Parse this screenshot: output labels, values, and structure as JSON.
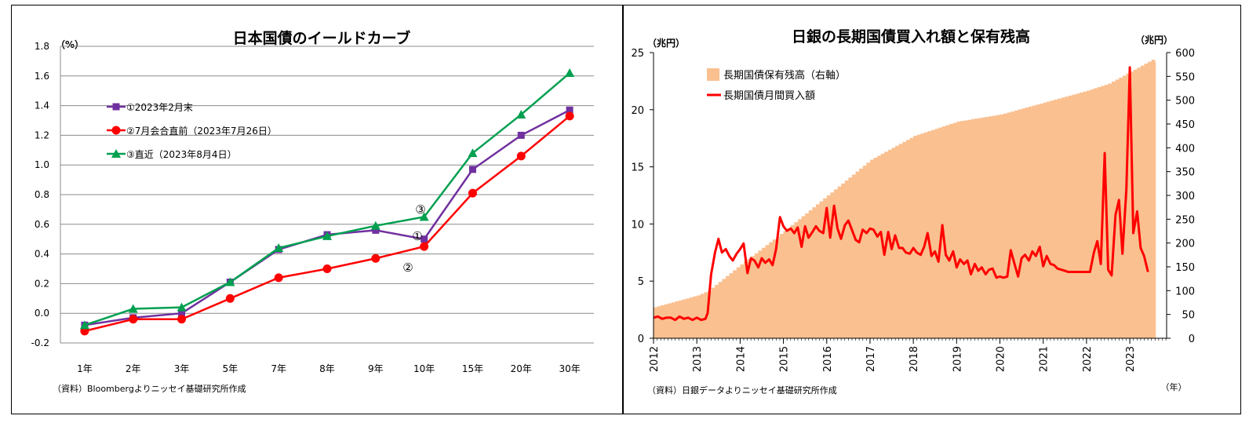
{
  "chart_data": [
    {
      "type": "line",
      "title": "日本国債のイールドカーブ",
      "ylabel": "（%）",
      "ylim": [
        -0.2,
        1.8
      ],
      "yticks": [
        "1.8",
        "1.6",
        "1.4",
        "1.2",
        "1.0",
        "0.8",
        "0.6",
        "0.4",
        "0.2",
        "0.0",
        "-0.2"
      ],
      "categories": [
        "1年",
        "2年",
        "3年",
        "5年",
        "7年",
        "8年",
        "9年",
        "10年",
        "15年",
        "20年",
        "30年"
      ],
      "series": [
        {
          "name": "①2023年2月末",
          "color": "#7030A0",
          "marker": "square",
          "values": [
            -0.08,
            -0.03,
            0.0,
            0.21,
            0.43,
            0.53,
            0.56,
            0.5,
            0.97,
            1.2,
            1.37
          ]
        },
        {
          "name": "②7月会合直前（2023年7月26日）",
          "color": "#FF0000",
          "marker": "circle",
          "values": [
            -0.12,
            -0.04,
            -0.04,
            0.1,
            0.24,
            0.3,
            0.37,
            0.45,
            0.81,
            1.06,
            1.33
          ]
        },
        {
          "name": "③直近（2023年8月4日）",
          "color": "#00A050",
          "marker": "triangle",
          "values": [
            -0.08,
            0.03,
            0.04,
            0.21,
            0.44,
            0.52,
            0.59,
            0.65,
            1.08,
            1.34,
            1.62
          ]
        }
      ],
      "annotations": [
        "③",
        "①",
        "②"
      ],
      "grid": true,
      "legend": "top-left",
      "source": "（資料）Bloombergよりニッセイ基礎研究所作成"
    },
    {
      "type": "bar+line",
      "title": "日銀の長期国債買入れ額と保有残高",
      "y_left_label": "（兆円）",
      "y_right_label": "（兆円）",
      "ylim_left": [
        0,
        25
      ],
      "ylim_right": [
        0,
        600
      ],
      "yticks_left": [
        "25",
        "20",
        "15",
        "10",
        "5",
        "0"
      ],
      "yticks_right": [
        "600",
        "550",
        "500",
        "450",
        "400",
        "350",
        "300",
        "250",
        "200",
        "150",
        "100",
        "50",
        "0"
      ],
      "x_ticks": [
        "2012",
        "2013",
        "2014",
        "2015",
        "2016",
        "2017",
        "2018",
        "2019",
        "2020",
        "2021",
        "2022",
        "2023"
      ],
      "x_unit": "（年）",
      "x_start": 2012.0,
      "x_end": 2023.85,
      "legend": "top-left",
      "source": "（資料）日銀データよりニッセイ基礎研究所作成",
      "holdings": {
        "name": "長期国債保有残高（右軸）",
        "axis": "right",
        "color": "#FAC090",
        "points": [
          [
            2012.0,
            65
          ],
          [
            2013.0,
            90
          ],
          [
            2013.25,
            100
          ],
          [
            2014.0,
            155
          ],
          [
            2015.0,
            225
          ],
          [
            2016.0,
            300
          ],
          [
            2017.0,
            375
          ],
          [
            2018.0,
            425
          ],
          [
            2019.0,
            455
          ],
          [
            2020.0,
            470
          ],
          [
            2021.0,
            495
          ],
          [
            2022.0,
            520
          ],
          [
            2022.5,
            535
          ],
          [
            2023.0,
            560
          ],
          [
            2023.5,
            585
          ],
          [
            2023.6,
            580
          ]
        ]
      },
      "purchases": {
        "name": "長期国債月間買入額",
        "axis": "left",
        "color": "#FF0000",
        "points": [
          [
            2012.0,
            1.8
          ],
          [
            2012.1,
            1.9
          ],
          [
            2012.2,
            1.7
          ],
          [
            2012.3,
            1.8
          ],
          [
            2012.4,
            1.8
          ],
          [
            2012.5,
            1.6
          ],
          [
            2012.6,
            1.9
          ],
          [
            2012.7,
            1.7
          ],
          [
            2012.8,
            1.8
          ],
          [
            2012.9,
            1.6
          ],
          [
            2013.0,
            1.8
          ],
          [
            2013.1,
            1.6
          ],
          [
            2013.2,
            1.7
          ],
          [
            2013.25,
            2.2
          ],
          [
            2013.33,
            5.6
          ],
          [
            2013.42,
            7.5
          ],
          [
            2013.5,
            8.7
          ],
          [
            2013.58,
            7.5
          ],
          [
            2013.67,
            7.8
          ],
          [
            2013.75,
            7.2
          ],
          [
            2013.83,
            6.8
          ],
          [
            2013.92,
            7.4
          ],
          [
            2014.0,
            7.8
          ],
          [
            2014.08,
            8.3
          ],
          [
            2014.17,
            5.7
          ],
          [
            2014.25,
            7.0
          ],
          [
            2014.33,
            6.8
          ],
          [
            2014.42,
            6.2
          ],
          [
            2014.5,
            7.0
          ],
          [
            2014.58,
            6.6
          ],
          [
            2014.67,
            6.9
          ],
          [
            2014.75,
            6.4
          ],
          [
            2014.83,
            7.8
          ],
          [
            2014.92,
            10.6
          ],
          [
            2015.0,
            9.8
          ],
          [
            2015.08,
            9.4
          ],
          [
            2015.17,
            9.6
          ],
          [
            2015.25,
            9.2
          ],
          [
            2015.33,
            9.7
          ],
          [
            2015.42,
            8.0
          ],
          [
            2015.5,
            9.8
          ],
          [
            2015.58,
            8.8
          ],
          [
            2015.67,
            9.3
          ],
          [
            2015.75,
            9.8
          ],
          [
            2015.83,
            9.4
          ],
          [
            2015.92,
            9.2
          ],
          [
            2016.0,
            11.4
          ],
          [
            2016.08,
            8.8
          ],
          [
            2016.17,
            11.6
          ],
          [
            2016.25,
            9.6
          ],
          [
            2016.33,
            8.7
          ],
          [
            2016.42,
            9.9
          ],
          [
            2016.5,
            10.3
          ],
          [
            2016.58,
            9.5
          ],
          [
            2016.67,
            8.6
          ],
          [
            2016.75,
            8.4
          ],
          [
            2016.83,
            9.5
          ],
          [
            2016.92,
            9.2
          ],
          [
            2017.0,
            9.6
          ],
          [
            2017.08,
            9.5
          ],
          [
            2017.17,
            8.9
          ],
          [
            2017.25,
            9.3
          ],
          [
            2017.33,
            7.3
          ],
          [
            2017.42,
            9.3
          ],
          [
            2017.5,
            7.8
          ],
          [
            2017.58,
            9.0
          ],
          [
            2017.67,
            7.9
          ],
          [
            2017.75,
            7.9
          ],
          [
            2017.83,
            7.5
          ],
          [
            2017.92,
            7.4
          ],
          [
            2018.0,
            7.9
          ],
          [
            2018.08,
            7.5
          ],
          [
            2018.17,
            7.3
          ],
          [
            2018.25,
            8.0
          ],
          [
            2018.33,
            9.2
          ],
          [
            2018.42,
            7.2
          ],
          [
            2018.5,
            7.6
          ],
          [
            2018.58,
            6.7
          ],
          [
            2018.67,
            9.9
          ],
          [
            2018.75,
            7.3
          ],
          [
            2018.83,
            6.8
          ],
          [
            2018.92,
            7.6
          ],
          [
            2019.0,
            6.2
          ],
          [
            2019.08,
            6.9
          ],
          [
            2019.17,
            6.5
          ],
          [
            2019.25,
            6.8
          ],
          [
            2019.33,
            5.6
          ],
          [
            2019.42,
            6.5
          ],
          [
            2019.5,
            5.9
          ],
          [
            2019.58,
            6.2
          ],
          [
            2019.67,
            5.6
          ],
          [
            2019.75,
            6.0
          ],
          [
            2019.83,
            6.1
          ],
          [
            2019.92,
            5.3
          ],
          [
            2020.0,
            5.4
          ],
          [
            2020.08,
            5.3
          ],
          [
            2020.17,
            5.4
          ],
          [
            2020.25,
            7.7
          ],
          [
            2020.33,
            6.6
          ],
          [
            2020.42,
            5.4
          ],
          [
            2020.5,
            7.0
          ],
          [
            2020.58,
            7.3
          ],
          [
            2020.67,
            6.8
          ],
          [
            2020.75,
            7.6
          ],
          [
            2020.83,
            7.2
          ],
          [
            2020.92,
            8.0
          ],
          [
            2021.0,
            6.3
          ],
          [
            2021.08,
            7.2
          ],
          [
            2021.17,
            6.5
          ],
          [
            2021.25,
            6.4
          ],
          [
            2021.33,
            6.1
          ],
          [
            2021.42,
            6.0
          ],
          [
            2021.5,
            5.9
          ],
          [
            2021.58,
            5.8
          ],
          [
            2021.67,
            5.8
          ],
          [
            2021.75,
            5.8
          ],
          [
            2021.83,
            5.8
          ],
          [
            2021.92,
            5.8
          ],
          [
            2022.0,
            5.8
          ],
          [
            2022.08,
            5.8
          ],
          [
            2022.17,
            7.5
          ],
          [
            2022.25,
            8.5
          ],
          [
            2022.33,
            6.5
          ],
          [
            2022.42,
            16.2
          ],
          [
            2022.5,
            6.0
          ],
          [
            2022.58,
            5.5
          ],
          [
            2022.67,
            10.8
          ],
          [
            2022.75,
            12.1
          ],
          [
            2022.83,
            7.4
          ],
          [
            2022.92,
            13.0
          ],
          [
            2023.0,
            23.7
          ],
          [
            2023.08,
            9.2
          ],
          [
            2023.17,
            11.1
          ],
          [
            2023.25,
            7.9
          ],
          [
            2023.33,
            7.2
          ],
          [
            2023.42,
            5.8
          ]
        ]
      }
    }
  ]
}
